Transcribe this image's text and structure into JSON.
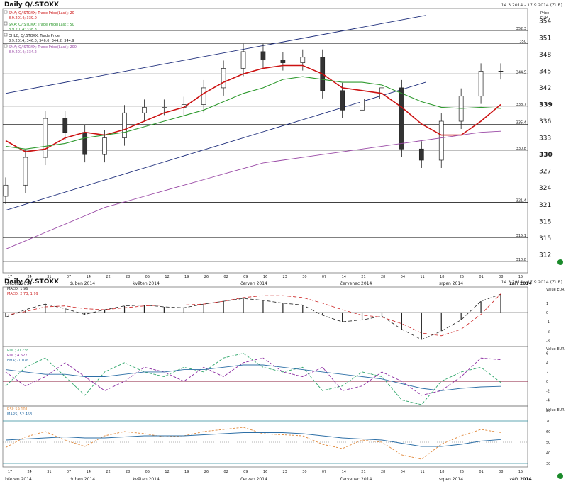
{
  "header": {
    "title": "Daily Q/.STOXX",
    "date_range": "14.3.2014 - 17.9.2014 (ZUR)"
  },
  "panel2": {
    "title": "Daily Q/.STOXX",
    "date_range": "14.3.2014 - 17.9.2014 (ZUR)"
  },
  "colors": {
    "sma20": "#cc1111",
    "sma50": "#2f9a2f",
    "sma200": "#9a4aa6",
    "channel": "#1c2c7a",
    "hline": "#000000",
    "candle_up": "#ffffff",
    "candle_down": "#333333",
    "macd": "#222222",
    "macd_signal": "#cc2222",
    "roc1": "#2ea66a",
    "roc2": "#8a2aa0",
    "ema": "#2d6fa6",
    "rsi": "#e0883a",
    "mars": "#2d6fa6",
    "level_line": "#2d8a9a",
    "zero_line": "#8a1a3a"
  },
  "legend_main": [
    {
      "label": "SMA; Q/.STOXX; Trade Price(Last); 20",
      "value": "8.9.2014; 339.0"
    },
    {
      "label": "SMA; Q/.STOXX; Trade Price(Last); 50",
      "value": "8.9.2014; 338.3"
    },
    {
      "label": "OHLC; Q/.STOXX; Trade Price",
      "value": "8.9.2014; 346.0; 346.0; 344.2; 344.9"
    },
    {
      "label": "SMA; Q/.STOXX; Trade Price(Last); 200",
      "value": "8.9.2014; 334.2"
    }
  ],
  "legend_macd": [
    {
      "label": "MACD; 1.96"
    },
    {
      "label": "MACD; 2.73; 1.99"
    }
  ],
  "legend_roc": [
    {
      "label": "ROC; -0.238"
    },
    {
      "label": "ROC; 4.627"
    },
    {
      "label": "EMA; -1.076"
    }
  ],
  "legend_rsi": [
    {
      "label": "RSI; 59.101"
    },
    {
      "label": "MARS; 52.453"
    }
  ],
  "axis_main": {
    "unit": "Price EUR",
    "ticks": [
      "354",
      "351",
      "348",
      "345",
      "342",
      "339",
      "336",
      "333",
      "330",
      "327",
      "324",
      "321",
      "318",
      "315",
      "312"
    ],
    "level_labels": [
      "352,3",
      "350",
      "344,5",
      "338,7",
      "335,4",
      "330,8",
      "321,4",
      "315,1",
      "310,8"
    ]
  },
  "axis_macd": {
    "unit": "Value EUR",
    "ticks": [
      "1",
      "0",
      "-1",
      "-2",
      "-3"
    ]
  },
  "axis_roc": {
    "unit": "Value EUR",
    "ticks": [
      "6",
      "4",
      "2",
      "0",
      "-2",
      "-4"
    ]
  },
  "axis_rsi": {
    "unit": "Value EUR",
    "ticks": [
      "80",
      "70",
      "60",
      "50",
      "40",
      "30"
    ]
  },
  "x_axis": {
    "days": [
      "17",
      "24",
      "31",
      "07",
      "14",
      "22",
      "28",
      "05",
      "12",
      "19",
      "26",
      "02",
      "09",
      "16",
      "23",
      "30",
      "07",
      "14",
      "21",
      "28",
      "04",
      "11",
      "18",
      "25",
      "01",
      "08",
      "15"
    ],
    "months": [
      "březen 2014",
      "duben 2014",
      "květen 2014",
      "červen 2014",
      "červenec 2014",
      "srpen 2014",
      "září 2014"
    ]
  },
  "chart_data": [
    {
      "type": "candlestick",
      "title": "Daily Q/.STOXX",
      "ylabel": "Price EUR",
      "ylim": [
        309,
        356
      ],
      "x_range": [
        "2014-03-14",
        "2014-09-17"
      ],
      "series": [
        {
          "name": "OHLC; Q/.STOXX; Trade Price",
          "x": [
            "2014-03-17",
            "2014-03-24",
            "2014-03-31",
            "2014-04-07",
            "2014-04-14",
            "2014-04-22",
            "2014-04-28",
            "2014-05-05",
            "2014-05-12",
            "2014-05-19",
            "2014-05-26",
            "2014-06-02",
            "2014-06-09",
            "2014-06-16",
            "2014-06-23",
            "2014-06-30",
            "2014-07-07",
            "2014-07-14",
            "2014-07-21",
            "2014-07-28",
            "2014-08-04",
            "2014-08-11",
            "2014-08-18",
            "2014-08-25",
            "2014-09-01",
            "2014-09-08"
          ],
          "close": [
            324.5,
            329.5,
            336.5,
            334.0,
            330.0,
            333.0,
            337.5,
            338.5,
            338.5,
            339.0,
            342.0,
            345.5,
            348.5,
            347.0,
            346.5,
            347.5,
            341.5,
            338.0,
            340.0,
            342.0,
            331.0,
            329.0,
            336.0,
            340.5,
            345.0,
            344.9
          ]
        },
        {
          "name": "SMA; Q/.STOXX; Trade Price(Last); 20",
          "values": [
            332.5,
            330.5,
            331.0,
            333.0,
            334.0,
            333.5,
            334.5,
            336.0,
            337.5,
            338.5,
            341.0,
            343.0,
            344.5,
            345.5,
            346.0,
            346.0,
            344.5,
            342.0,
            341.5,
            341.0,
            338.5,
            335.5,
            333.5,
            333.5,
            336.0,
            339.0
          ]
        },
        {
          "name": "SMA; Q/.STOXX; Trade Price(Last); 50",
          "values": [
            331.5,
            331.0,
            331.5,
            332.0,
            333.0,
            333.5,
            334.0,
            335.0,
            336.0,
            337.0,
            338.0,
            339.5,
            341.0,
            342.0,
            343.5,
            344.0,
            343.5,
            343.0,
            343.0,
            342.5,
            341.0,
            339.5,
            338.5,
            338.3,
            338.5,
            338.3
          ]
        },
        {
          "name": "SMA; Q/.STOXX; Trade Price(Last); 200",
          "values": [
            313.0,
            314.5,
            316.0,
            317.5,
            319.0,
            320.5,
            321.5,
            322.5,
            323.5,
            324.5,
            325.5,
            326.5,
            327.5,
            328.5,
            329.0,
            329.5,
            330.0,
            330.5,
            331.0,
            331.5,
            332.0,
            332.5,
            333.0,
            333.5,
            334.0,
            334.2
          ]
        }
      ]
    },
    {
      "type": "bar",
      "title": "MACD",
      "ylim": [
        -3.5,
        2.5
      ],
      "series": [
        {
          "name": "MACD; 1.96",
          "values": [
            -0.5,
            0.3,
            0.9,
            0.4,
            -0.2,
            0.3,
            0.7,
            0.8,
            0.6,
            0.5,
            0.9,
            1.2,
            1.5,
            1.3,
            1.0,
            0.8,
            -0.3,
            -1.0,
            -0.8,
            -0.4,
            -1.8,
            -2.9,
            -2.0,
            -0.8,
            1.2,
            1.96
          ]
        },
        {
          "name": "MACD; 2.73; 1.99",
          "values": [
            -0.3,
            0.1,
            0.6,
            0.7,
            0.4,
            0.3,
            0.5,
            0.7,
            0.8,
            0.8,
            0.9,
            1.2,
            1.6,
            1.8,
            1.8,
            1.6,
            1.0,
            0.3,
            -0.3,
            -0.5,
            -1.2,
            -2.2,
            -2.5,
            -1.8,
            -0.2,
            1.99
          ]
        }
      ]
    },
    {
      "type": "line",
      "title": "ROC",
      "ylim": [
        -5,
        7
      ],
      "series": [
        {
          "name": "ROC; -0.238",
          "values": [
            -1,
            3,
            5,
            1,
            -3,
            2,
            4,
            2,
            1,
            3,
            2,
            5,
            6,
            3,
            2,
            3,
            -2,
            -1,
            2,
            1,
            -4,
            -5,
            0,
            2,
            3,
            -0.238
          ]
        },
        {
          "name": "ROC; 4.627",
          "values": [
            2,
            -1,
            1,
            4,
            1,
            -2,
            0,
            3,
            2,
            0,
            3,
            1,
            4,
            5,
            2,
            1,
            3,
            -2,
            -1,
            2,
            0,
            -3,
            -2,
            1,
            5,
            4.627
          ]
        },
        {
          "name": "EMA; -1.076",
          "values": [
            2.5,
            2.0,
            1.5,
            1.5,
            1.0,
            1.0,
            1.5,
            2.0,
            2.0,
            2.5,
            2.5,
            3.0,
            3.5,
            3.5,
            3.0,
            2.5,
            2.0,
            1.5,
            1.0,
            0.5,
            -0.5,
            -1.5,
            -2.0,
            -1.5,
            -1.2,
            -1.076
          ]
        }
      ]
    },
    {
      "type": "line",
      "title": "RSI",
      "ylim": [
        28,
        82
      ],
      "series": [
        {
          "name": "RSI; 59.101",
          "values": [
            45,
            55,
            60,
            52,
            46,
            56,
            60,
            58,
            55,
            56,
            60,
            62,
            64,
            58,
            57,
            56,
            48,
            44,
            52,
            50,
            38,
            34,
            48,
            56,
            62,
            59.101
          ]
        },
        {
          "name": "MARS; 52.453",
          "values": [
            52,
            53,
            54,
            55,
            54,
            54,
            55,
            56,
            56,
            56,
            57,
            58,
            59,
            59,
            59,
            58,
            56,
            54,
            53,
            52,
            49,
            46,
            46,
            48,
            51,
            52.453
          ]
        }
      ]
    }
  ]
}
